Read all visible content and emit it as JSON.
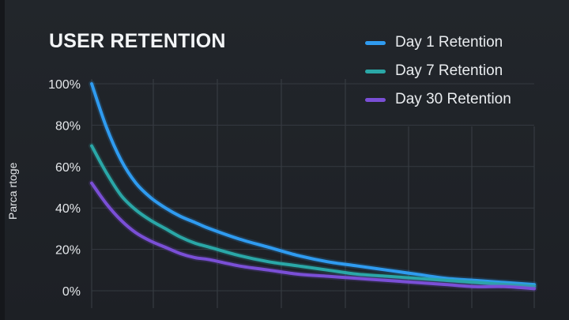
{
  "chart_data": {
    "type": "line",
    "title": "USER RETENTION",
    "ylabel": "Parca rtoge",
    "xlabel": "",
    "y_tick_labels": [
      "0%",
      "20%",
      "40%",
      "60%",
      "80%",
      "100%"
    ],
    "ylim": [
      0,
      100
    ],
    "xlim": [
      0,
      30
    ],
    "grid": true,
    "legend_position": "top-right",
    "x": [
      0,
      1,
      2,
      3,
      4,
      5,
      6,
      7,
      8,
      10,
      12,
      14,
      16,
      18,
      20,
      22,
      24,
      26,
      28,
      30
    ],
    "series": [
      {
        "name": "Day 1 Retention",
        "color": "#2f9bf0",
        "values": [
          100,
          79,
          63,
          52,
          45,
          40,
          36,
          33,
          30,
          25,
          21,
          17,
          14,
          12,
          10,
          8,
          6,
          5,
          4,
          3
        ]
      },
      {
        "name": "Day 7 Retention",
        "color": "#2aa7a7",
        "values": [
          70,
          57,
          46,
          39,
          34,
          30,
          26,
          23,
          21,
          17,
          14,
          12,
          10,
          8,
          7,
          6,
          5,
          4,
          3,
          2
        ]
      },
      {
        "name": "Day 30 Retention",
        "color": "#7a4fd6",
        "values": [
          52,
          42,
          34,
          28,
          24,
          21,
          18,
          16,
          15,
          12,
          10,
          8,
          7,
          6,
          5,
          4,
          3,
          2,
          2,
          1
        ]
      }
    ]
  }
}
